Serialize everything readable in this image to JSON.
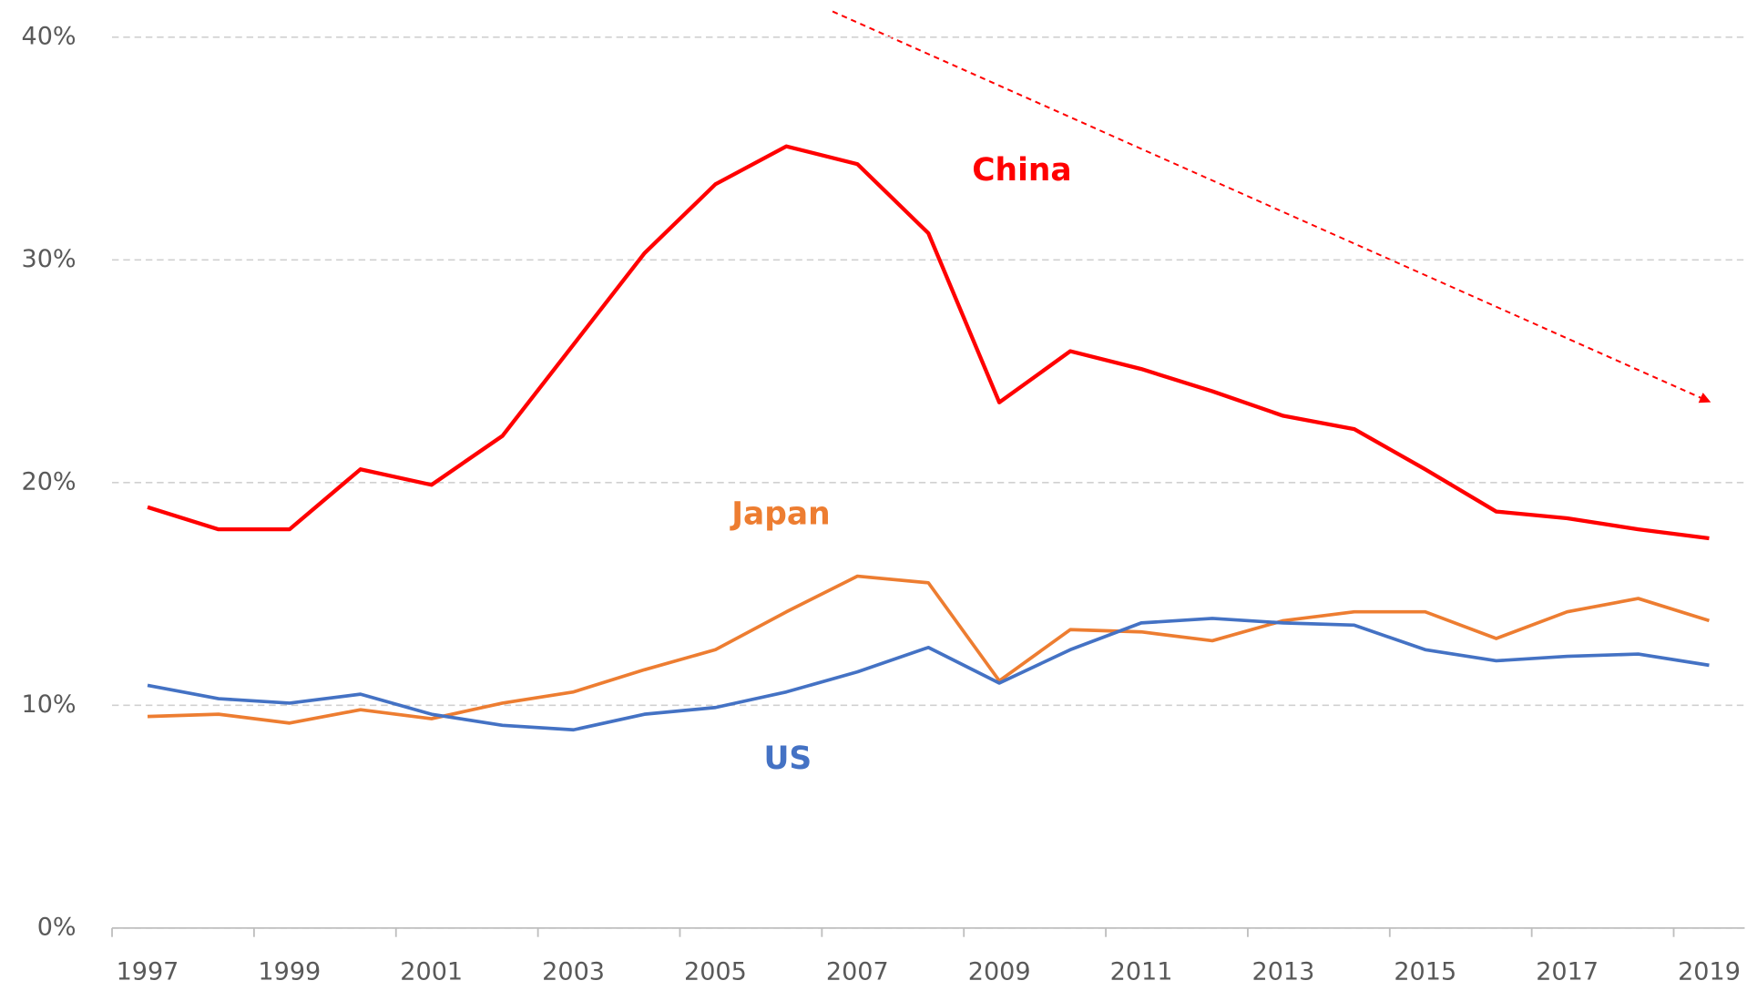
{
  "chart_data": {
    "type": "line",
    "categories": [
      "1997",
      null,
      "1999",
      null,
      "2001",
      null,
      "2003",
      null,
      "2005",
      null,
      "2007",
      null,
      "2009",
      null,
      "2011",
      null,
      "2013",
      null,
      "2015",
      null,
      "2017",
      null,
      "2019"
    ],
    "series": [
      {
        "name": "China",
        "color": "#ff0000",
        "values": [
          18.9,
          17.9,
          17.9,
          20.6,
          19.9,
          22.1,
          26.2,
          30.3,
          33.4,
          35.1,
          34.3,
          31.2,
          23.6,
          25.9,
          25.1,
          24.1,
          23.0,
          22.4,
          20.6,
          18.7,
          18.4,
          17.9,
          17.5
        ]
      },
      {
        "name": "Japan",
        "color": "#ed7d31",
        "values": [
          9.5,
          9.6,
          9.2,
          9.8,
          9.4,
          10.1,
          10.6,
          11.6,
          12.5,
          14.2,
          15.8,
          15.5,
          11.1,
          13.4,
          13.3,
          12.9,
          13.8,
          14.2,
          14.2,
          13.0,
          14.2,
          14.8,
          13.8
        ]
      },
      {
        "name": "US",
        "color": "#4472c4",
        "values": [
          10.9,
          10.3,
          10.1,
          10.5,
          9.6,
          9.1,
          8.9,
          9.6,
          9.9,
          10.6,
          11.5,
          12.6,
          11.0,
          12.5,
          13.7,
          13.9,
          13.7,
          13.6,
          12.5,
          12.0,
          12.2,
          12.3,
          11.8
        ]
      }
    ],
    "ylim": [
      0,
      40
    ],
    "yticks": [
      {
        "value": 0,
        "label": "0%"
      },
      {
        "value": 10,
        "label": "10%"
      },
      {
        "value": 20,
        "label": "20%"
      },
      {
        "value": 30,
        "label": "30%"
      },
      {
        "value": 40,
        "label": "40%"
      }
    ],
    "grid": true
  }
}
